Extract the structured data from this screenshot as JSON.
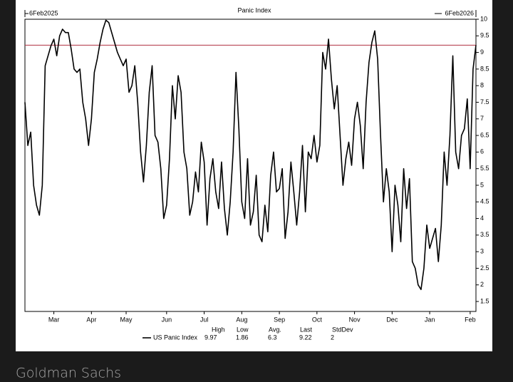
{
  "chart_data": {
    "type": "line",
    "title": "Panic Index",
    "start_label": "6Feb2025",
    "end_label": "6Feb2026",
    "categories": [
      null,
      null,
      null,
      null,
      null,
      null,
      null,
      null,
      null,
      null,
      "Mar",
      null,
      null,
      null,
      null,
      null,
      null,
      null,
      null,
      null,
      null,
      null,
      null,
      "Apr",
      null,
      null,
      null,
      null,
      null,
      null,
      null,
      null,
      null,
      null,
      null,
      "May",
      null,
      null,
      null,
      null,
      null,
      null,
      null,
      null,
      null,
      null,
      null,
      null,
      null,
      "Jun",
      null,
      null,
      null,
      null,
      null,
      null,
      null,
      null,
      null,
      null,
      null,
      null,
      "Jul",
      null,
      null,
      null,
      null,
      null,
      null,
      null,
      null,
      null,
      null,
      null,
      null,
      "Aug",
      null,
      null,
      null,
      null,
      null,
      null,
      null,
      null,
      null,
      null,
      null,
      null,
      "Sep",
      null,
      null,
      null,
      null,
      null,
      null,
      null,
      null,
      null,
      null,
      null,
      null,
      "Oct",
      null,
      null,
      null,
      null,
      null,
      null,
      null,
      null,
      null,
      null,
      null,
      null,
      "Nov",
      null,
      null,
      null,
      null,
      null,
      null,
      null,
      null,
      null,
      null,
      null,
      null,
      "Dec",
      null,
      null,
      null,
      null,
      null,
      null,
      null,
      null,
      null,
      null,
      null,
      null,
      "Jan",
      null,
      null,
      null,
      null,
      null,
      null,
      null,
      null,
      null,
      null,
      null,
      null,
      null,
      "Feb",
      null,
      null
    ],
    "series": [
      {
        "name": "US Panic Index",
        "color": "#000000",
        "values": [
          7.5,
          6.2,
          6.6,
          5.0,
          4.4,
          4.1,
          5.0,
          8.6,
          8.9,
          9.2,
          9.4,
          8.9,
          9.5,
          9.7,
          9.6,
          9.6,
          9.1,
          8.5,
          8.4,
          8.5,
          7.5,
          7.0,
          6.2,
          7.0,
          8.4,
          8.8,
          9.3,
          9.7,
          9.97,
          9.9,
          9.6,
          9.3,
          9.0,
          8.8,
          8.6,
          8.8,
          7.8,
          8.0,
          8.6,
          7.5,
          6.0,
          5.1,
          6.2,
          7.8,
          8.6,
          6.5,
          6.3,
          5.5,
          4.0,
          4.4,
          5.8,
          8.0,
          7.0,
          8.3,
          7.8,
          6.0,
          5.5,
          4.1,
          4.5,
          5.4,
          4.8,
          6.3,
          5.7,
          3.8,
          5.2,
          5.8,
          4.8,
          4.3,
          5.7,
          4.3,
          3.5,
          4.5,
          6.0,
          8.4,
          6.7,
          4.5,
          4.0,
          5.8,
          3.8,
          4.2,
          5.3,
          3.5,
          3.3,
          4.4,
          3.6,
          5.3,
          6.0,
          4.8,
          4.9,
          5.5,
          3.4,
          4.2,
          5.7,
          4.8,
          3.8,
          4.8,
          6.2,
          4.2,
          6.0,
          5.8,
          6.5,
          5.7,
          6.2,
          9.0,
          8.5,
          9.4,
          8.2,
          7.3,
          8.0,
          6.5,
          5.0,
          5.8,
          6.3,
          5.6,
          7.0,
          7.5,
          6.8,
          5.5,
          7.5,
          8.7,
          9.3,
          9.65,
          8.8,
          6.5,
          4.5,
          5.5,
          4.8,
          3.0,
          5.0,
          4.4,
          3.3,
          5.5,
          4.3,
          5.2,
          2.7,
          2.5,
          2.0,
          1.86,
          2.5,
          3.8,
          3.1,
          3.4,
          3.7,
          2.7,
          3.8,
          6.0,
          5.0,
          6.5,
          8.9,
          6.0,
          5.5,
          6.5,
          6.7,
          7.6,
          5.5,
          8.5,
          9.22
        ]
      }
    ],
    "ylim": [
      1.2,
      10
    ],
    "yticks": [
      1.5,
      2,
      2.5,
      3,
      3.5,
      4,
      4.5,
      5,
      5.5,
      6,
      6.5,
      7,
      7.5,
      8,
      8.5,
      9,
      9.5,
      10
    ],
    "y_axis_side": "right",
    "grid": false,
    "reference_color": "#b03040",
    "stats": {
      "headers": [
        "High",
        "Low",
        "Avg.",
        "Last",
        "StdDev"
      ],
      "values": [
        9.97,
        1.86,
        6.3,
        9.22,
        2
      ]
    }
  },
  "footer": "Goldman Sachs"
}
